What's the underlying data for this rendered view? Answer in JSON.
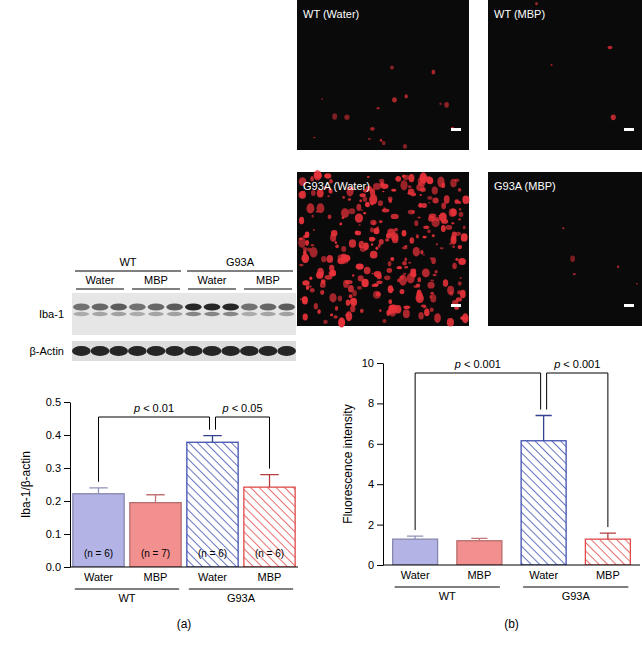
{
  "chart_data": [
    {
      "type": "bar",
      "panel": "(a)",
      "y_label": "Iba-1/β-actin",
      "categories": [
        "Water",
        "MBP",
        "Water",
        "MBP"
      ],
      "groups": [
        "WT",
        "G93A"
      ],
      "values": [
        0.222,
        0.195,
        0.378,
        0.242
      ],
      "errors": [
        0.018,
        0.024,
        0.02,
        0.038
      ],
      "n_labels": [
        "(n = 6)",
        "(n = 7)",
        "(n = 6)",
        "(n = 6)"
      ],
      "colors": [
        "#b3b3e6",
        "#f29090",
        "#4050b0",
        "#e04a4a"
      ],
      "ylim": [
        0,
        0.5
      ],
      "yticks": [
        {
          "value": 0,
          "label": "0.0"
        },
        0.1,
        0.2,
        0.3,
        0.4,
        0.5
      ],
      "annotations": [
        {
          "text": "p < 0.01",
          "from": 0,
          "to": 2
        },
        {
          "text": "p < 0.05",
          "from": 2,
          "to": 3
        }
      ],
      "blot": {
        "groups": [
          "WT",
          "G93A"
        ],
        "treatments": [
          "Water",
          "MBP",
          "Water",
          "MBP"
        ],
        "bands": [
          "Iba-1",
          "β-Actin"
        ]
      }
    },
    {
      "type": "bar",
      "panel": "(b)",
      "y_label": "Fluorescence intensity",
      "categories": [
        "Water",
        "MBP",
        "Water",
        "MBP"
      ],
      "groups": [
        "WT",
        "G93A"
      ],
      "values": [
        1.28,
        1.2,
        6.15,
        1.28
      ],
      "errors": [
        0.15,
        0.12,
        1.25,
        0.3
      ],
      "colors": [
        "#b3b3e6",
        "#f29090",
        "#4050b0",
        "#e04a4a"
      ],
      "ylim": [
        0,
        10
      ],
      "yticks": [
        0,
        2,
        4,
        6,
        8,
        10
      ],
      "annotations": [
        {
          "text": "p < 0.001",
          "from": 0,
          "to": 2
        },
        {
          "text": "p < 0.001",
          "from": 2,
          "to": 3
        }
      ],
      "images": [
        "WT (Water)",
        "WT (MBP)",
        "G93A (Water)",
        "G93A (MBP)"
      ]
    }
  ]
}
